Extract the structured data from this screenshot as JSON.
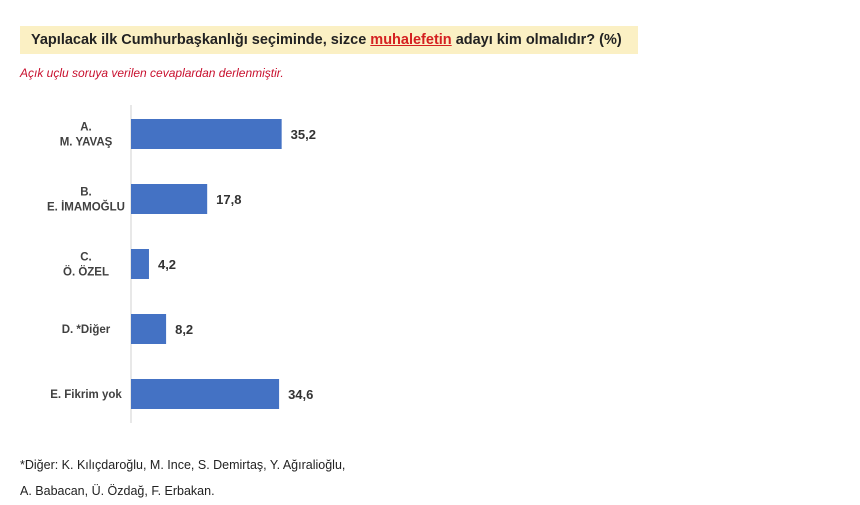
{
  "title": {
    "prefix": "Yapılacak ilk Cumhurbaşkanlığı seçiminde, sizce ",
    "emphasis": "muhalefetin",
    "suffix": " adayı kim olmalıdır? (%)"
  },
  "subtitle": "Açık uçlu soruya verilen cevaplardan derlenmiştir.",
  "colors": {
    "bar": "#4472c4",
    "title_bg": "#fbf0c4",
    "subtitle": "#c8102e",
    "emphasis": "#d42020"
  },
  "chart_data": {
    "type": "bar",
    "orientation": "horizontal",
    "categories": [
      [
        "A.",
        "M. YAVAŞ"
      ],
      [
        "B.",
        "E. İMAMOĞLU"
      ],
      [
        "C.",
        "Ö. ÖZEL"
      ],
      [
        "D. *Diğer"
      ],
      [
        "E. Fikrim yok"
      ]
    ],
    "values": [
      35.2,
      17.8,
      4.2,
      8.2,
      34.6
    ],
    "value_labels": [
      "35,2",
      "17,8",
      "4,2",
      "8,2",
      "34,6"
    ],
    "xlim": [
      0,
      40
    ],
    "grid": false,
    "legend": "none"
  },
  "footnote": {
    "line1": "*Diğer: K. Kılıçdaroğlu, M. Ince, S. Demirtaş, Y. Ağıralioğlu,",
    "line2": "A. Babacan, Ü. Özdağ, F. Erbakan."
  }
}
